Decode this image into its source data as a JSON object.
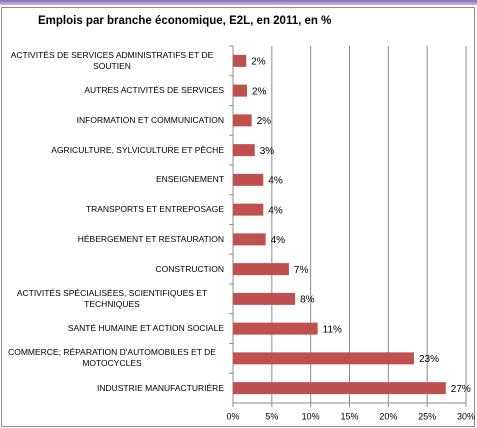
{
  "chart_data": {
    "type": "bar",
    "orientation": "horizontal",
    "title": "Emplois par branche économique,  E2L, en 2011, en %",
    "categories": [
      "ACTIVITÉS DE SERVICES ADMINISTRATIFS ET DE SOUTIEN",
      "AUTRES ACTIVITÉS DE SERVICES",
      "INFORMATION ET COMMUNICATION",
      "AGRICULTURE, SYLVICULTURE ET PÊCHE",
      "ENSEIGNEMENT",
      "TRANSPORTS ET ENTREPOSAGE",
      "HÉBERGEMENT ET RESTAURATION",
      "CONSTRUCTION",
      "ACTIVITÉS SPÉCIALISÉES, SCIENTIFIQUES ET TECHNIQUES",
      "SANTÉ HUMAINE ET ACTION SOCIALE",
      "COMMERCE; RÉPARATION D'AUTOMOBILES ET DE MOTOCYCLES",
      "INDUSTRIE MANUFACTURIÈRE"
    ],
    "values": [
      1.7,
      1.8,
      2.4,
      2.8,
      3.9,
      3.9,
      4.2,
      7.2,
      8.0,
      10.9,
      23.3,
      27.4
    ],
    "value_labels": [
      "2%",
      "2%",
      "2%",
      "3%",
      "4%",
      "4%",
      "4%",
      "7%",
      "8%",
      "11%",
      "23%",
      "27%"
    ],
    "color": "#c0504d",
    "xlim": [
      0,
      30
    ],
    "xticks": [
      {
        "value": 0,
        "label": "0%"
      },
      {
        "value": 5,
        "label": "5%"
      },
      {
        "value": 10,
        "label": "10%"
      },
      {
        "value": 15,
        "label": "15%"
      },
      {
        "value": 20,
        "label": "20%"
      },
      {
        "value": 25,
        "label": "25%"
      },
      {
        "value": 30,
        "label": "30%"
      }
    ],
    "grid": true
  }
}
